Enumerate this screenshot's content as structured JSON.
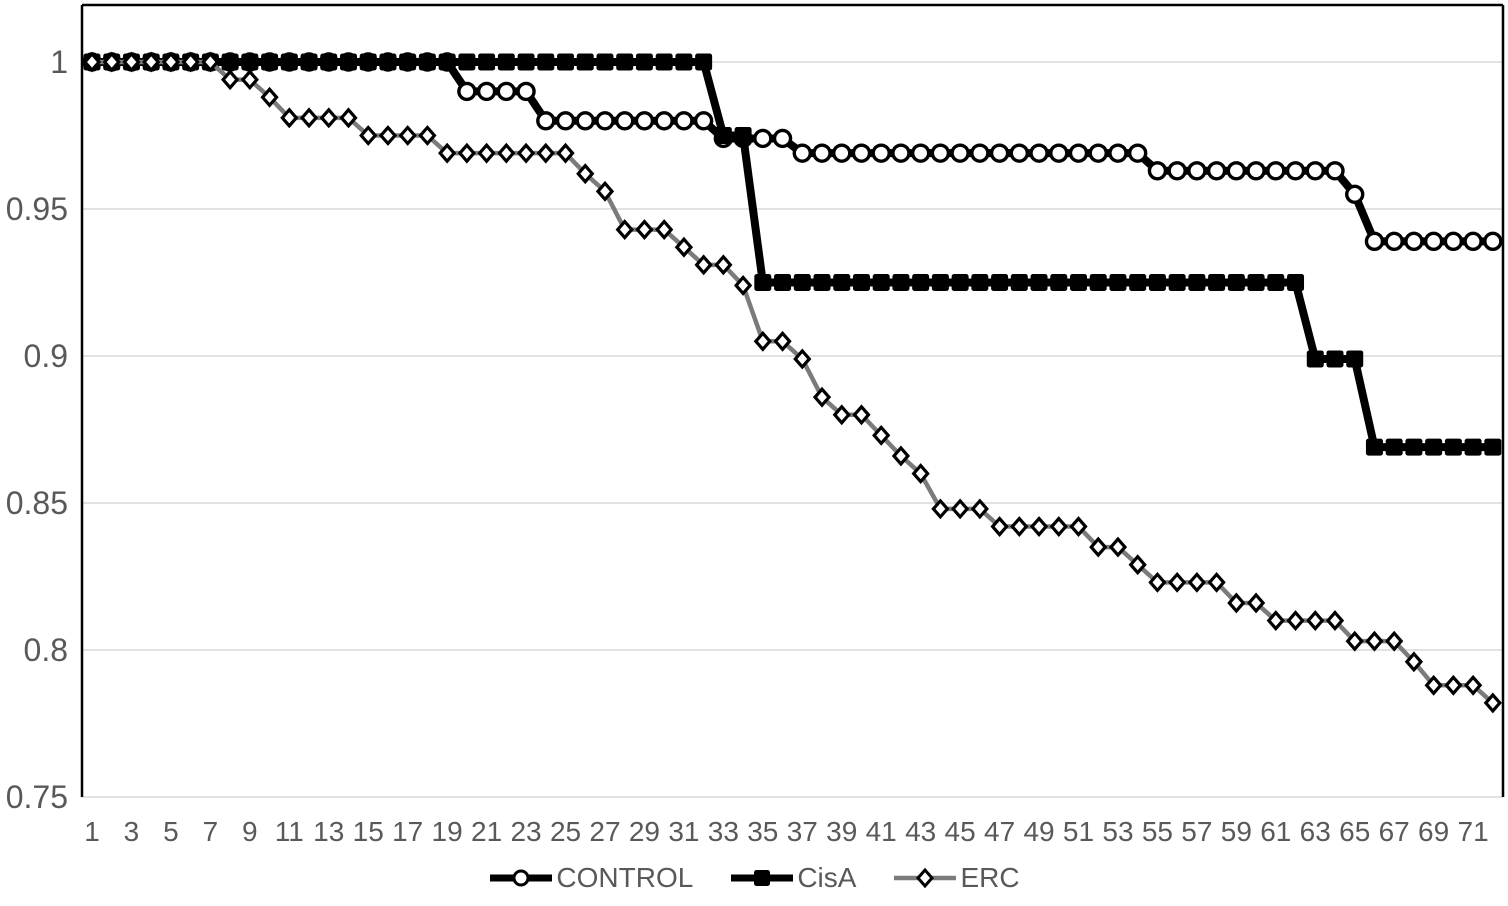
{
  "chart_data": {
    "type": "line",
    "title": "",
    "xlabel": "",
    "ylabel": "",
    "grid": true,
    "legend_position": "bottom",
    "ylim": [
      0.75,
      1.02
    ],
    "x": [
      1,
      2,
      3,
      4,
      5,
      6,
      7,
      8,
      9,
      10,
      11,
      12,
      13,
      14,
      15,
      16,
      17,
      18,
      19,
      20,
      21,
      22,
      23,
      24,
      25,
      26,
      27,
      28,
      29,
      30,
      31,
      32,
      33,
      34,
      35,
      36,
      37,
      38,
      39,
      40,
      41,
      42,
      43,
      44,
      45,
      46,
      47,
      48,
      49,
      50,
      51,
      52,
      53,
      54,
      55,
      56,
      57,
      58,
      59,
      60,
      61,
      62,
      63,
      64,
      65,
      66,
      67,
      68,
      69,
      70,
      71,
      72
    ],
    "x_tick_labels": [
      "1",
      "3",
      "5",
      "7",
      "9",
      "11",
      "13",
      "15",
      "17",
      "19",
      "21",
      "23",
      "25",
      "27",
      "29",
      "31",
      "33",
      "35",
      "37",
      "39",
      "41",
      "43",
      "45",
      "47",
      "49",
      "51",
      "53",
      "55",
      "57",
      "59",
      "61",
      "63",
      "65",
      "67",
      "69",
      "71"
    ],
    "y_ticks": [
      1,
      0.95,
      0.9,
      0.85,
      0.8,
      0.75
    ],
    "y_axis_tick_labels": [
      "1",
      "0.95",
      "0.9",
      "0.85",
      "0.8",
      "0.75"
    ],
    "style": {
      "grid_color": "#d9d9d9",
      "axis_border_color": "#000000",
      "label_color": "#595959",
      "background": "#ffffff"
    },
    "series": [
      {
        "name": "CONTROL",
        "marker": "circle",
        "line_color": "#000000",
        "line_width": 8,
        "marker_fill": "#ffffff",
        "marker_stroke": "#000000",
        "values": [
          1,
          1,
          1,
          1,
          1,
          1,
          1,
          1,
          1,
          1,
          1,
          1,
          1,
          1,
          1,
          1,
          1,
          1,
          1,
          0.99,
          0.99,
          0.99,
          0.99,
          0.98,
          0.98,
          0.98,
          0.98,
          0.98,
          0.98,
          0.98,
          0.98,
          0.98,
          0.974,
          0.974,
          0.974,
          0.974,
          0.969,
          0.969,
          0.969,
          0.969,
          0.969,
          0.969,
          0.969,
          0.969,
          0.969,
          0.969,
          0.969,
          0.969,
          0.969,
          0.969,
          0.969,
          0.969,
          0.969,
          0.969,
          0.963,
          0.963,
          0.963,
          0.963,
          0.963,
          0.963,
          0.963,
          0.963,
          0.963,
          0.963,
          0.955,
          0.939,
          0.939,
          0.939,
          0.939,
          0.939,
          0.939,
          0.939
        ]
      },
      {
        "name": "CisA",
        "marker": "square",
        "line_color": "#000000",
        "line_width": 8,
        "marker_fill": "#000000",
        "marker_stroke": "#000000",
        "values": [
          1,
          1,
          1,
          1,
          1,
          1,
          1,
          1,
          1,
          1,
          1,
          1,
          1,
          1,
          1,
          1,
          1,
          1,
          1,
          1,
          1,
          1,
          1,
          1,
          1,
          1,
          1,
          1,
          1,
          1,
          1,
          1,
          0.975,
          0.975,
          0.925,
          0.925,
          0.925,
          0.925,
          0.925,
          0.925,
          0.925,
          0.925,
          0.925,
          0.925,
          0.925,
          0.925,
          0.925,
          0.925,
          0.925,
          0.925,
          0.925,
          0.925,
          0.925,
          0.925,
          0.925,
          0.925,
          0.925,
          0.925,
          0.925,
          0.925,
          0.925,
          0.925,
          0.899,
          0.899,
          0.899,
          0.869,
          0.869,
          0.869,
          0.869,
          0.869,
          0.869,
          0.869
        ]
      },
      {
        "name": "ERC",
        "marker": "diamond",
        "line_color": "#7b7b7b",
        "line_width": 4.5,
        "marker_fill": "#ffffff",
        "marker_stroke": "#000000",
        "values": [
          1,
          1,
          1,
          1,
          1,
          1,
          1,
          0.994,
          0.994,
          0.988,
          0.981,
          0.981,
          0.981,
          0.981,
          0.975,
          0.975,
          0.975,
          0.975,
          0.969,
          0.969,
          0.969,
          0.969,
          0.969,
          0.969,
          0.969,
          0.962,
          0.956,
          0.943,
          0.943,
          0.943,
          0.937,
          0.931,
          0.931,
          0.924,
          0.905,
          0.905,
          0.899,
          0.886,
          0.88,
          0.88,
          0.873,
          0.866,
          0.86,
          0.848,
          0.848,
          0.848,
          0.842,
          0.842,
          0.842,
          0.842,
          0.842,
          0.835,
          0.835,
          0.829,
          0.823,
          0.823,
          0.823,
          0.823,
          0.816,
          0.816,
          0.81,
          0.81,
          0.81,
          0.81,
          0.803,
          0.803,
          0.803,
          0.796,
          0.788,
          0.788,
          0.788,
          0.782
        ]
      }
    ]
  }
}
